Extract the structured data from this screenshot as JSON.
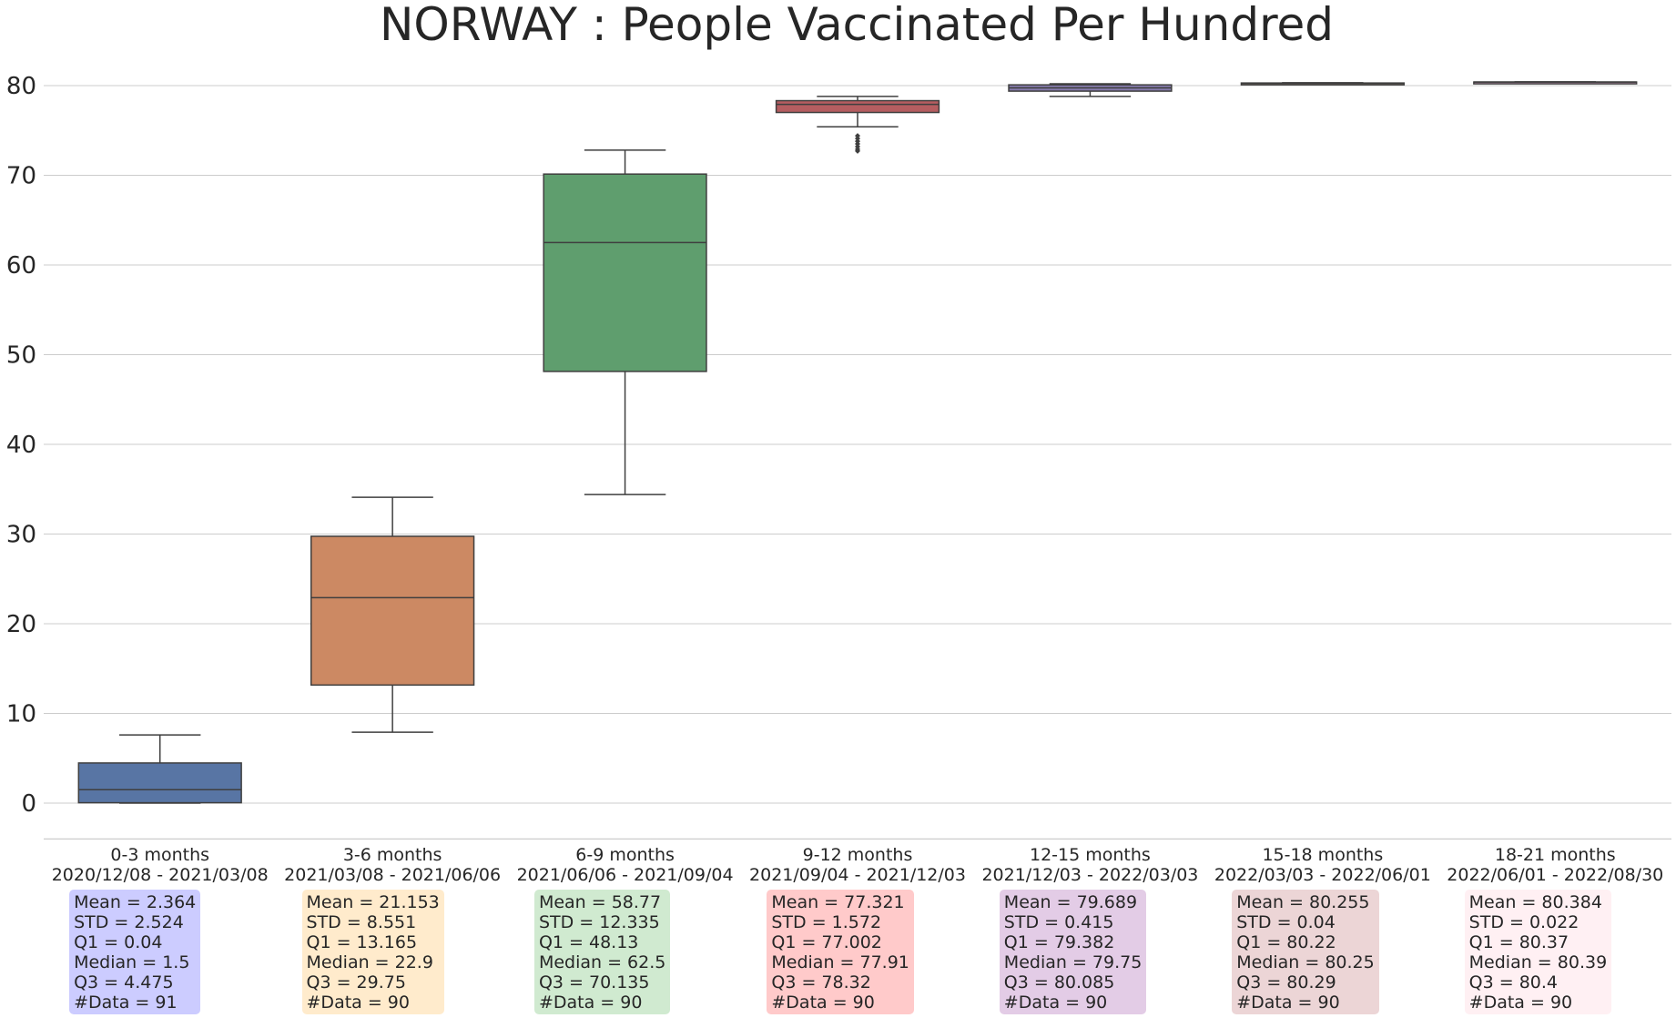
{
  "chart_data": {
    "type": "box",
    "title": "NORWAY : People Vaccinated Per Hundred",
    "ylim": [
      -4,
      85
    ],
    "yticks": [
      0,
      10,
      20,
      30,
      40,
      50,
      60,
      70,
      80
    ],
    "grid": true,
    "categories": [
      {
        "period": "0-3 months",
        "dates": "2020/12/08 - 2021/03/08"
      },
      {
        "period": "3-6 months",
        "dates": "2021/03/08 - 2021/06/06"
      },
      {
        "period": "6-9 months",
        "dates": "2021/06/06 - 2021/09/04"
      },
      {
        "period": "9-12 months",
        "dates": "2021/09/04 - 2021/12/03"
      },
      {
        "period": "12-15 months",
        "dates": "2021/12/03 - 2022/03/03"
      },
      {
        "period": "15-18 months",
        "dates": "2022/03/03 - 2022/06/01"
      },
      {
        "period": "18-21 months",
        "dates": "2022/06/01 - 2022/08/30"
      }
    ],
    "boxes": [
      {
        "whisker_low": 0.0,
        "q1": 0.04,
        "median": 1.5,
        "q3": 4.475,
        "whisker_high": 7.6,
        "outliers": [],
        "color": "#5875a4"
      },
      {
        "whisker_low": 7.9,
        "q1": 13.165,
        "median": 22.9,
        "q3": 29.75,
        "whisker_high": 34.1,
        "outliers": [],
        "color": "#cc8963"
      },
      {
        "whisker_low": 34.4,
        "q1": 48.13,
        "median": 62.5,
        "q3": 70.135,
        "whisker_high": 72.8,
        "outliers": [],
        "color": "#5f9e6e"
      },
      {
        "whisker_low": 75.4,
        "q1": 77.002,
        "median": 77.91,
        "q3": 78.32,
        "whisker_high": 78.8,
        "outliers": [
          74.4,
          74.1,
          73.8,
          73.5,
          73.2,
          72.9,
          72.7
        ],
        "color": "#b55d60"
      },
      {
        "whisker_low": 78.8,
        "q1": 79.382,
        "median": 79.75,
        "q3": 80.085,
        "whisker_high": 80.2,
        "outliers": [],
        "color": "#857aab"
      },
      {
        "whisker_low": 80.18,
        "q1": 80.22,
        "median": 80.25,
        "q3": 80.29,
        "whisker_high": 80.32,
        "outliers": [],
        "color": "#8d7866"
      },
      {
        "whisker_low": 80.34,
        "q1": 80.37,
        "median": 80.39,
        "q3": 80.4,
        "whisker_high": 80.42,
        "outliers": [],
        "color": "#d095bf"
      }
    ],
    "stats": [
      {
        "bg": "#ccccff",
        "lines": [
          "Mean = 2.364",
          "STD = 2.524",
          "Q1 = 0.04",
          "Median = 1.5",
          "Q3 = 4.475",
          "#Data = 91"
        ]
      },
      {
        "bg": "#ffebcc",
        "lines": [
          "Mean = 21.153",
          "STD = 8.551",
          "Q1 = 13.165",
          "Median = 22.9",
          "Q3 = 29.75",
          "#Data = 90"
        ]
      },
      {
        "bg": "#d0ead0",
        "lines": [
          "Mean = 58.77",
          "STD = 12.335",
          "Q1 = 48.13",
          "Median = 62.5",
          "Q3 = 70.135",
          "#Data = 90"
        ]
      },
      {
        "bg": "#ffcaca",
        "lines": [
          "Mean = 77.321",
          "STD = 1.572",
          "Q1 = 77.002",
          "Median = 77.91",
          "Q3 = 78.32",
          "#Data = 90"
        ]
      },
      {
        "bg": "#e3cce6",
        "lines": [
          "Mean = 79.689",
          "STD = 0.415",
          "Q1 = 79.382",
          "Median = 79.75",
          "Q3 = 80.085",
          "#Data = 90"
        ]
      },
      {
        "bg": "#ecd5d6",
        "lines": [
          "Mean = 80.255",
          "STD = 0.04",
          "Q1 = 80.22",
          "Median = 80.25",
          "Q3 = 80.29",
          "#Data = 90"
        ]
      },
      {
        "bg": "#fff0f3",
        "lines": [
          "Mean = 80.384",
          "STD = 0.022",
          "Q1 = 80.37",
          "Median = 80.39",
          "Q3 = 80.4",
          "#Data = 90"
        ]
      }
    ]
  }
}
